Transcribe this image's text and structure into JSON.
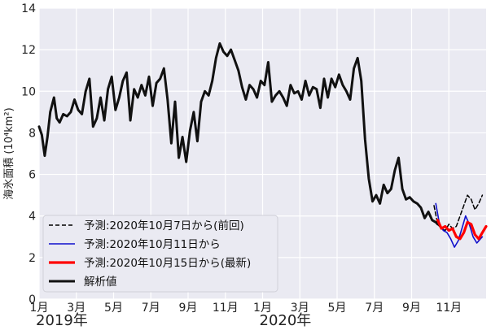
{
  "chart_data": {
    "type": "line",
    "ylabel": "海氷面積 (10⁴km²)",
    "ylim": [
      0,
      14
    ],
    "yticks": [
      0,
      2,
      4,
      6,
      8,
      10,
      12,
      14
    ],
    "xlim": [
      0,
      24
    ],
    "xticks": [
      {
        "x": 0,
        "label": "1月"
      },
      {
        "x": 2,
        "label": "3月"
      },
      {
        "x": 4,
        "label": "5月"
      },
      {
        "x": 6,
        "label": "7月"
      },
      {
        "x": 8,
        "label": "9月"
      },
      {
        "x": 10,
        "label": "11月"
      },
      {
        "x": 12,
        "label": "1月"
      },
      {
        "x": 14,
        "label": "3月"
      },
      {
        "x": 16,
        "label": "5月"
      },
      {
        "x": 18,
        "label": "7月"
      },
      {
        "x": 20,
        "label": "9月"
      },
      {
        "x": 22,
        "label": "11月"
      }
    ],
    "year_labels": [
      {
        "x": 0,
        "label": "2019年"
      },
      {
        "x": 12,
        "label": "2020年"
      }
    ],
    "grid": true,
    "legend_position": "lower-left",
    "series": [
      {
        "name": "予測:2020年10月7日から(前回)",
        "color": "#000000",
        "style": "dashed",
        "x": [
          21.2,
          21.4,
          21.6,
          21.8,
          22.0,
          22.2,
          22.4,
          22.6,
          22.8,
          23.0,
          23.2,
          23.4,
          23.6,
          23.8
        ],
        "y": [
          4.5,
          3.6,
          3.4,
          3.3,
          3.6,
          3.4,
          3.5,
          4.0,
          4.5,
          5.0,
          4.8,
          4.3,
          4.6,
          5.0
        ]
      },
      {
        "name": "予測:2020年10月11日から",
        "color": "#1010cc",
        "style": "solid",
        "x": [
          21.3,
          21.5,
          21.7,
          21.9,
          22.1,
          22.3,
          22.5,
          22.7,
          22.9,
          23.1,
          23.3,
          23.5,
          23.7,
          23.8
        ],
        "y": [
          4.6,
          3.6,
          3.3,
          3.2,
          2.9,
          2.5,
          2.8,
          3.4,
          4.0,
          3.6,
          3.0,
          2.7,
          2.9,
          3.0
        ]
      },
      {
        "name": "予測:2020年10月15日から(最新)",
        "color": "#ff0000",
        "style": "solid",
        "x": [
          21.4,
          21.6,
          21.8,
          22.0,
          22.2,
          22.4,
          22.6,
          22.8,
          23.0,
          23.2,
          23.4,
          23.6,
          23.8,
          24.0
        ],
        "y": [
          3.8,
          3.4,
          3.5,
          3.3,
          3.4,
          3.0,
          2.9,
          3.2,
          3.7,
          3.6,
          3.1,
          2.9,
          3.2,
          3.5
        ]
      },
      {
        "name": "解析値",
        "color": "#111111",
        "style": "solid",
        "x": [
          0,
          0.15,
          0.3,
          0.45,
          0.6,
          0.8,
          0.95,
          1.1,
          1.3,
          1.5,
          1.7,
          1.9,
          2.1,
          2.3,
          2.5,
          2.7,
          2.9,
          3.1,
          3.3,
          3.5,
          3.7,
          3.9,
          4.1,
          4.3,
          4.5,
          4.7,
          4.9,
          5.1,
          5.3,
          5.5,
          5.7,
          5.9,
          6.1,
          6.3,
          6.5,
          6.7,
          6.9,
          7.1,
          7.3,
          7.5,
          7.7,
          7.9,
          8.1,
          8.3,
          8.5,
          8.7,
          8.9,
          9.1,
          9.3,
          9.5,
          9.7,
          9.9,
          10.1,
          10.3,
          10.5,
          10.7,
          10.9,
          11.1,
          11.3,
          11.5,
          11.7,
          11.9,
          12.1,
          12.3,
          12.5,
          12.7,
          12.9,
          13.1,
          13.3,
          13.5,
          13.7,
          13.9,
          14.1,
          14.3,
          14.5,
          14.7,
          14.9,
          15.1,
          15.3,
          15.5,
          15.7,
          15.9,
          16.1,
          16.3,
          16.5,
          16.7,
          16.9,
          17.1,
          17.3,
          17.5,
          17.7,
          17.9,
          18.1,
          18.3,
          18.5,
          18.7,
          18.9,
          19.1,
          19.3,
          19.5,
          19.7,
          19.9,
          20.1,
          20.3,
          20.5,
          20.7,
          20.9,
          21.1,
          21.3,
          21.4
        ],
        "y": [
          8.3,
          7.9,
          6.9,
          7.8,
          9.0,
          9.7,
          8.7,
          8.5,
          8.9,
          8.8,
          9.0,
          9.6,
          9.1,
          8.9,
          10.0,
          10.6,
          8.3,
          8.7,
          9.7,
          8.6,
          10.1,
          10.7,
          9.1,
          9.7,
          10.5,
          10.9,
          8.6,
          10.1,
          9.7,
          10.3,
          9.8,
          10.7,
          9.3,
          10.4,
          10.6,
          11.1,
          9.6,
          7.5,
          9.5,
          6.8,
          7.8,
          6.6,
          8.1,
          9.0,
          7.6,
          9.5,
          10.0,
          9.8,
          10.5,
          11.6,
          12.3,
          11.9,
          11.7,
          12.0,
          11.5,
          11.0,
          10.2,
          9.6,
          10.3,
          10.1,
          9.7,
          10.5,
          10.3,
          11.4,
          9.5,
          9.8,
          10.0,
          9.7,
          9.3,
          10.3,
          9.9,
          10.0,
          9.6,
          10.5,
          9.8,
          10.2,
          10.1,
          9.2,
          10.6,
          9.7,
          10.6,
          10.2,
          10.8,
          10.3,
          10.0,
          9.6,
          11.1,
          11.6,
          10.5,
          7.7,
          5.8,
          4.7,
          5.0,
          4.6,
          5.5,
          5.1,
          5.3,
          6.2,
          6.8,
          5.3,
          4.8,
          4.9,
          4.7,
          4.6,
          4.4,
          3.9,
          4.2,
          3.8,
          3.7,
          3.6
        ]
      }
    ]
  }
}
